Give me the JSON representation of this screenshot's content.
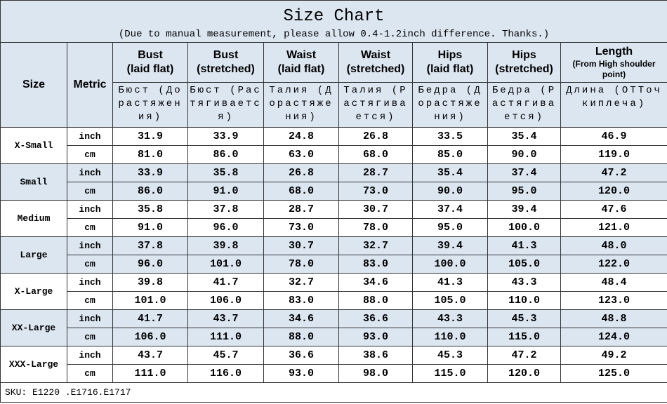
{
  "header": {
    "title": "Size Chart",
    "subtitle": "(Due to manual measurement, please allow 0.4-1.2inch difference. Thanks.)"
  },
  "table": {
    "columns": [
      {
        "en": "Size"
      },
      {
        "en": "Metric"
      },
      {
        "en": "Bust",
        "en2": "(laid flat)",
        "ru": "Бюст (Дорастяжения)"
      },
      {
        "en": "Bust",
        "en2": "(stretched)",
        "ru": "Бюст (Растягивается)"
      },
      {
        "en": "Waist",
        "en2": "(laid flat)",
        "ru": "Талия (Дорастяжения)"
      },
      {
        "en": "Waist",
        "en2": "(stretched)",
        "ru": "Талия (Растягивается)"
      },
      {
        "en": "Hips",
        "en2": "(laid flat)",
        "ru": "Бедра (Дорастяжения)"
      },
      {
        "en": "Hips",
        "en2": "(stretched)",
        "ru": "Бедра (Растягивается)"
      },
      {
        "en": "Length",
        "en2": "(From High shoulder point)",
        "ru": "Длина (ОТТочкиплеча)"
      }
    ],
    "rows": [
      {
        "size": "X-Small",
        "lines": [
          [
            "inch",
            "31.9",
            "33.9",
            "24.8",
            "26.8",
            "33.5",
            "35.4",
            "46.9"
          ],
          [
            "cm",
            "81.0",
            "86.0",
            "63.0",
            "68.0",
            "85.0",
            "90.0",
            "119.0"
          ]
        ]
      },
      {
        "size": "Small",
        "lines": [
          [
            "inch",
            "33.9",
            "35.8",
            "26.8",
            "28.7",
            "35.4",
            "37.4",
            "47.2"
          ],
          [
            "cm",
            "86.0",
            "91.0",
            "68.0",
            "73.0",
            "90.0",
            "95.0",
            "120.0"
          ]
        ]
      },
      {
        "size": "Medium",
        "lines": [
          [
            "inch",
            "35.8",
            "37.8",
            "28.7",
            "30.7",
            "37.4",
            "39.4",
            "47.6"
          ],
          [
            "cm",
            "91.0",
            "96.0",
            "73.0",
            "78.0",
            "95.0",
            "100.0",
            "121.0"
          ]
        ]
      },
      {
        "size": "Large",
        "lines": [
          [
            "inch",
            "37.8",
            "39.8",
            "30.7",
            "32.7",
            "39.4",
            "41.3",
            "48.0"
          ],
          [
            "cm",
            "96.0",
            "101.0",
            "78.0",
            "83.0",
            "100.0",
            "105.0",
            "122.0"
          ]
        ]
      },
      {
        "size": "X-Large",
        "lines": [
          [
            "inch",
            "39.8",
            "41.7",
            "32.7",
            "34.6",
            "41.3",
            "43.3",
            "48.4"
          ],
          [
            "cm",
            "101.0",
            "106.0",
            "83.0",
            "88.0",
            "105.0",
            "110.0",
            "123.0"
          ]
        ]
      },
      {
        "size": "XX-Large",
        "lines": [
          [
            "inch",
            "41.7",
            "43.7",
            "34.6",
            "36.6",
            "43.3",
            "45.3",
            "48.8"
          ],
          [
            "cm",
            "106.0",
            "111.0",
            "88.0",
            "93.0",
            "110.0",
            "115.0",
            "124.0"
          ]
        ]
      },
      {
        "size": "XXX-Large",
        "lines": [
          [
            "inch",
            "43.7",
            "45.7",
            "36.6",
            "38.6",
            "45.3",
            "47.2",
            "49.2"
          ],
          [
            "cm",
            "111.0",
            "116.0",
            "93.0",
            "98.0",
            "115.0",
            "120.0",
            "125.0"
          ]
        ]
      }
    ]
  },
  "footer": "SKU: E1220 .E1716.E1717"
}
